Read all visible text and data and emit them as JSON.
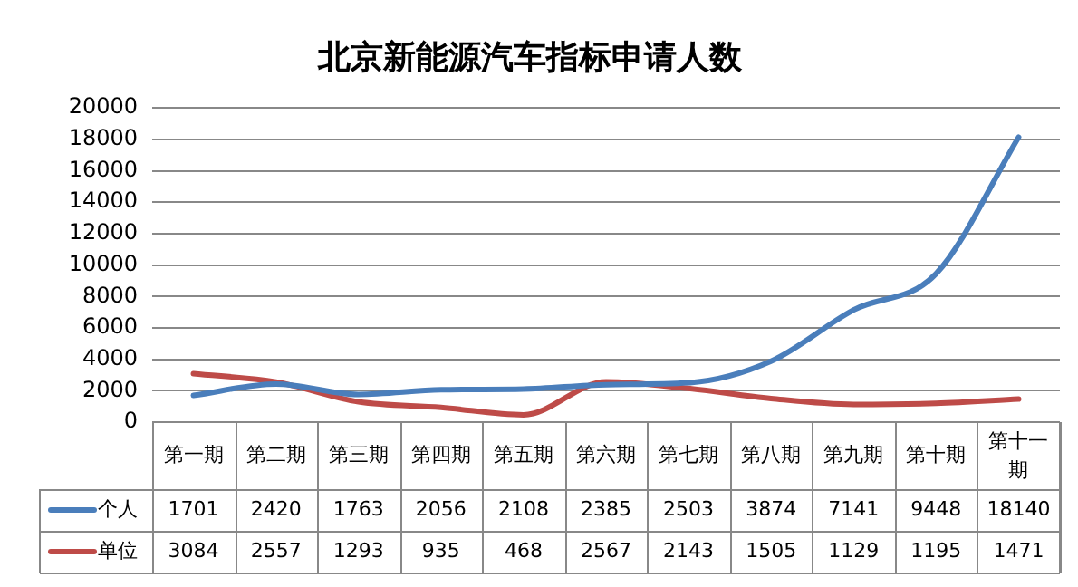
{
  "chart_data": {
    "type": "line",
    "title": "北京新能源汽车指标申请人数",
    "categories": [
      "第一期",
      "第二期",
      "第三期",
      "第四期",
      "第五期",
      "第六期",
      "第七期",
      "第八期",
      "第九期",
      "第十期",
      "第十一期"
    ],
    "series": [
      {
        "name": "个人",
        "color": "#4a7ebb",
        "values": [
          1701,
          2420,
          1763,
          2056,
          2108,
          2385,
          2503,
          3874,
          7141,
          9448,
          18140
        ]
      },
      {
        "name": "单位",
        "color": "#be4b48",
        "values": [
          3084,
          2557,
          1293,
          935,
          468,
          2567,
          2143,
          1505,
          1129,
          1195,
          1471
        ]
      }
    ],
    "ylim": [
      0,
      20000
    ],
    "yticks": [
      0,
      2000,
      4000,
      6000,
      8000,
      10000,
      12000,
      14000,
      16000,
      18000,
      20000
    ],
    "grid": "y",
    "data_labels": true,
    "marker": "none",
    "line_style": "solid",
    "legend": "bottom"
  }
}
